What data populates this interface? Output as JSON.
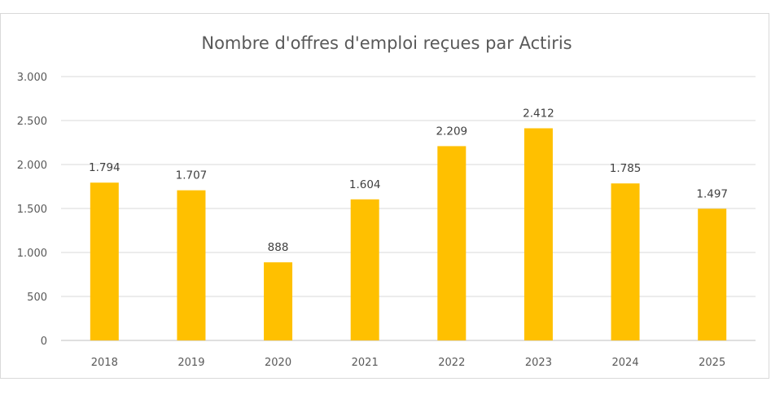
{
  "chart_data": {
    "type": "bar",
    "title": "Nombre d'offres d'emploi reçues par Actiris",
    "categories": [
      "2018",
      "2019",
      "2020",
      "2021",
      "2022",
      "2023",
      "2024",
      "2025"
    ],
    "values": [
      1794,
      1707,
      888,
      1604,
      2209,
      2412,
      1785,
      1497
    ],
    "value_labels": [
      "1.794",
      "1.707",
      "888",
      "1.604",
      "2.209",
      "2.412",
      "1.785",
      "1.497"
    ],
    "y_ticks": [
      0,
      500,
      1000,
      1500,
      2000,
      2500,
      3000
    ],
    "y_tick_labels": [
      "0",
      "500",
      "1.000",
      "1.500",
      "2.000",
      "2.500",
      "3.000"
    ],
    "ylim": [
      0,
      3000
    ],
    "xlabel": "",
    "ylabel": "",
    "grid": true,
    "legend": "none",
    "bar_color": "#FFC000"
  }
}
